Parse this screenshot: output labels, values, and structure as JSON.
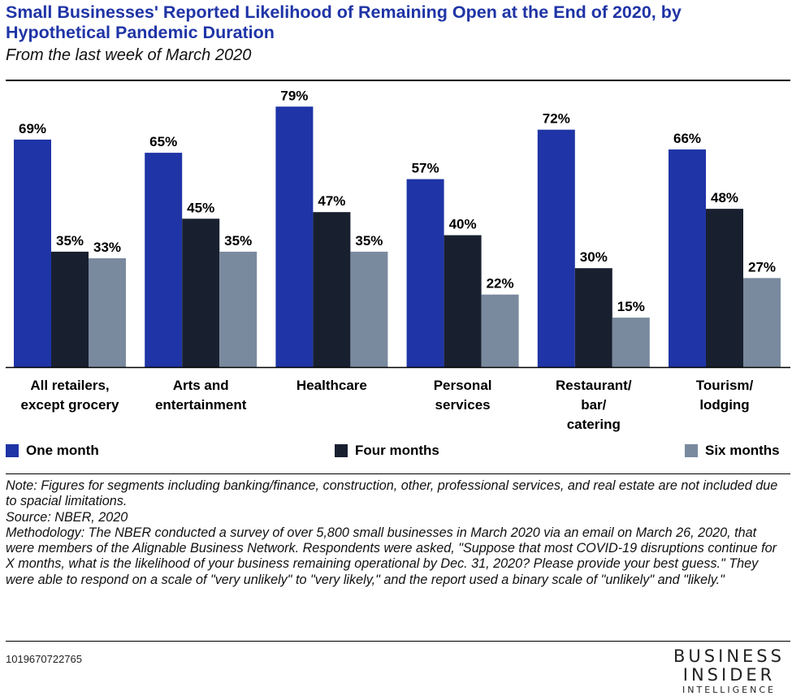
{
  "title": "Small Businesses' Reported Likelihood of Remaining Open at the End of 2020, by Hypothetical Pandemic Duration",
  "subtitle": "From the last week of March 2020",
  "chart_data": {
    "type": "bar",
    "categories": [
      [
        "All retailers,",
        "except grocery"
      ],
      [
        "Arts and",
        "entertainment"
      ],
      [
        "Healthcare"
      ],
      [
        "Personal",
        "services"
      ],
      [
        "Restaurant/",
        "bar/",
        "catering"
      ],
      [
        "Tourism/",
        "lodging"
      ]
    ],
    "series": [
      {
        "name": "One month",
        "color": "#1f34a6",
        "values": [
          69,
          65,
          79,
          57,
          72,
          66
        ]
      },
      {
        "name": "Four months",
        "color": "#182030",
        "values": [
          35,
          45,
          47,
          40,
          30,
          48
        ]
      },
      {
        "name": "Six months",
        "color": "#7a8a9e",
        "values": [
          33,
          35,
          35,
          22,
          15,
          27
        ]
      }
    ],
    "value_suffix": "%",
    "ylim": [
      0,
      100
    ],
    "grid": false,
    "legend_position": "bottom"
  },
  "notes": {
    "note": "Note: Figures for segments including banking/finance, construction, other, professional services, and real estate are not included due to spacial limitations.",
    "source": "Source: NBER, 2020",
    "methodology": "Methodology: The NBER conducted a survey of over 5,800 small businesses in March 2020 via an email on March 26, 2020, that were members of the Alignable Business Network. Respondents were asked, \"Suppose that most COVID-19 disruptions continue for X months, what is the likelihood of your business remaining operational by Dec. 31, 2020? Please provide your best guess.\" They were able to respond on a scale of \"very unlikely\" to \"very likely,\" and the report used a binary scale of \"unlikely\" and \"likely.\""
  },
  "chart_id": "1019670722765",
  "logo": {
    "line1": "BUSINESS",
    "line2": "INSIDER",
    "line3": "INTELLIGENCE"
  }
}
